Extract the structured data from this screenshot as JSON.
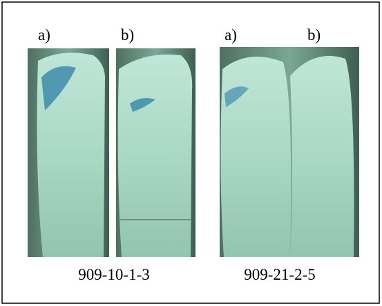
{
  "panels": [
    {
      "labels": [
        "a)",
        "b)"
      ],
      "caption": "909-10-1-3"
    },
    {
      "labels": [
        "a)",
        "b)"
      ],
      "caption": "909-21-2-5"
    }
  ]
}
